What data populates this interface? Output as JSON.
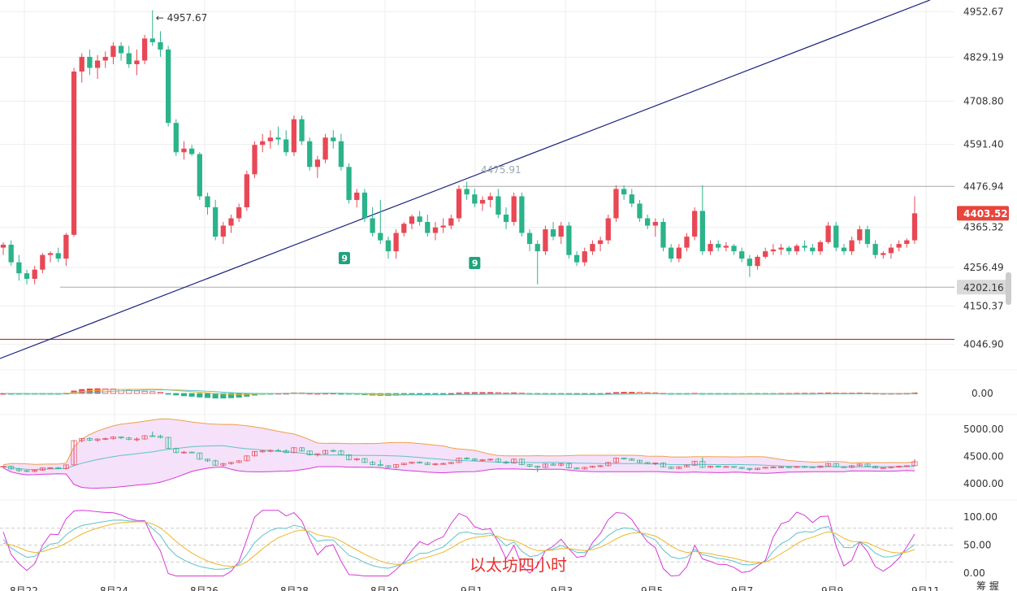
{
  "chart_data": [
    {
      "type": "candlestick",
      "panel": "price",
      "y_ticks": [
        "4952.67",
        "4829.19",
        "4708.80",
        "4591.40",
        "4476.94",
        "4365.32",
        "4256.49",
        "4150.37",
        "4046.90"
      ],
      "ylim": [
        4010,
        4985
      ],
      "x_ticks": [
        "8月22",
        "8月24",
        "8月26",
        "8月28",
        "8月30",
        "9月1",
        "9月3",
        "9月5",
        "9月7",
        "9月9",
        "9月11"
      ],
      "high_marker": "4957.67",
      "high_marker_prefix": "←",
      "level_label_mid": "4475.91",
      "current_price": "4403.52",
      "low_level": "4202.16",
      "support_level": 4060,
      "pattern_marks": [
        "9",
        "9"
      ],
      "candles": [
        [
          4310,
          4325,
          4290,
          4318
        ],
        [
          4318,
          4330,
          4260,
          4270
        ],
        [
          4270,
          4290,
          4220,
          4240
        ],
        [
          4240,
          4250,
          4210,
          4225
        ],
        [
          4225,
          4260,
          4210,
          4250
        ],
        [
          4250,
          4295,
          4240,
          4290
        ],
        [
          4290,
          4300,
          4270,
          4295
        ],
        [
          4295,
          4310,
          4270,
          4280
        ],
        [
          4280,
          4350,
          4260,
          4345
        ],
        [
          4345,
          4800,
          4340,
          4790
        ],
        [
          4790,
          4840,
          4760,
          4830
        ],
        [
          4830,
          4850,
          4780,
          4800
        ],
        [
          4800,
          4835,
          4770,
          4820
        ],
        [
          4820,
          4845,
          4800,
          4830
        ],
        [
          4830,
          4870,
          4810,
          4860
        ],
        [
          4860,
          4870,
          4820,
          4840
        ],
        [
          4840,
          4860,
          4800,
          4810
        ],
        [
          4810,
          4850,
          4780,
          4820
        ],
        [
          4820,
          4890,
          4810,
          4880
        ],
        [
          4880,
          4957,
          4860,
          4870
        ],
        [
          4870,
          4900,
          4830,
          4850
        ],
        [
          4850,
          4860,
          4640,
          4650
        ],
        [
          4650,
          4660,
          4560,
          4570
        ],
        [
          4570,
          4600,
          4550,
          4580
        ],
        [
          4580,
          4590,
          4560,
          4565
        ],
        [
          4565,
          4570,
          4440,
          4450
        ],
        [
          4450,
          4460,
          4400,
          4420
        ],
        [
          4420,
          4440,
          4330,
          4340
        ],
        [
          4340,
          4380,
          4320,
          4370
        ],
        [
          4370,
          4400,
          4350,
          4390
        ],
        [
          4390,
          4430,
          4380,
          4420
        ],
        [
          4420,
          4520,
          4410,
          4510
        ],
        [
          4510,
          4600,
          4500,
          4590
        ],
        [
          4590,
          4620,
          4570,
          4600
        ],
        [
          4600,
          4630,
          4580,
          4610
        ],
        [
          4610,
          4640,
          4590,
          4605
        ],
        [
          4605,
          4630,
          4560,
          4570
        ],
        [
          4570,
          4670,
          4560,
          4660
        ],
        [
          4660,
          4670,
          4590,
          4600
        ],
        [
          4600,
          4610,
          4520,
          4530
        ],
        [
          4530,
          4560,
          4500,
          4550
        ],
        [
          4550,
          4620,
          4540,
          4610
        ],
        [
          4610,
          4630,
          4580,
          4600
        ],
        [
          4600,
          4620,
          4520,
          4530
        ],
        [
          4530,
          4540,
          4430,
          4440
        ],
        [
          4440,
          4470,
          4420,
          4460
        ],
        [
          4460,
          4470,
          4380,
          4390
        ],
        [
          4390,
          4420,
          4340,
          4350
        ],
        [
          4350,
          4440,
          4320,
          4330
        ],
        [
          4330,
          4340,
          4280,
          4300
        ],
        [
          4300,
          4360,
          4280,
          4350
        ],
        [
          4350,
          4380,
          4340,
          4375
        ],
        [
          4375,
          4400,
          4360,
          4395
        ],
        [
          4395,
          4410,
          4370,
          4380
        ],
        [
          4380,
          4400,
          4340,
          4350
        ],
        [
          4350,
          4380,
          4330,
          4365
        ],
        [
          4365,
          4390,
          4350,
          4370
        ],
        [
          4370,
          4400,
          4360,
          4390
        ],
        [
          4390,
          4480,
          4380,
          4470
        ],
        [
          4470,
          4490,
          4440,
          4455
        ],
        [
          4455,
          4470,
          4420,
          4430
        ],
        [
          4430,
          4450,
          4410,
          4440
        ],
        [
          4440,
          4460,
          4420,
          4450
        ],
        [
          4450,
          4470,
          4390,
          4400
        ],
        [
          4400,
          4420,
          4360,
          4380
        ],
        [
          4380,
          4460,
          4370,
          4450
        ],
        [
          4450,
          4460,
          4340,
          4350
        ],
        [
          4350,
          4360,
          4300,
          4320
        ],
        [
          4320,
          4330,
          4210,
          4300
        ],
        [
          4300,
          4370,
          4290,
          4360
        ],
        [
          4360,
          4380,
          4330,
          4340
        ],
        [
          4340,
          4380,
          4320,
          4370
        ],
        [
          4370,
          4380,
          4280,
          4290
        ],
        [
          4290,
          4300,
          4260,
          4270
        ],
        [
          4270,
          4310,
          4260,
          4300
        ],
        [
          4300,
          4330,
          4290,
          4320
        ],
        [
          4320,
          4340,
          4300,
          4330
        ],
        [
          4330,
          4400,
          4320,
          4390
        ],
        [
          4390,
          4480,
          4380,
          4470
        ],
        [
          4470,
          4480,
          4440,
          4455
        ],
        [
          4455,
          4470,
          4420,
          4430
        ],
        [
          4430,
          4440,
          4380,
          4390
        ],
        [
          4390,
          4400,
          4360,
          4370
        ],
        [
          4370,
          4390,
          4340,
          4380
        ],
        [
          4380,
          4390,
          4300,
          4310
        ],
        [
          4310,
          4320,
          4270,
          4280
        ],
        [
          4280,
          4320,
          4270,
          4310
        ],
        [
          4310,
          4350,
          4300,
          4340
        ],
        [
          4340,
          4420,
          4330,
          4410
        ],
        [
          4410,
          4480,
          4290,
          4300
        ],
        [
          4300,
          4330,
          4290,
          4320
        ],
        [
          4320,
          4330,
          4300,
          4310
        ],
        [
          4310,
          4325,
          4300,
          4315
        ],
        [
          4315,
          4320,
          4290,
          4300
        ],
        [
          4300,
          4310,
          4270,
          4280
        ],
        [
          4280,
          4290,
          4230,
          4260
        ],
        [
          4260,
          4290,
          4250,
          4285
        ],
        [
          4285,
          4310,
          4280,
          4300
        ],
        [
          4300,
          4320,
          4290,
          4305
        ],
        [
          4305,
          4320,
          4290,
          4310
        ],
        [
          4310,
          4315,
          4290,
          4300
        ],
        [
          4300,
          4320,
          4290,
          4315
        ],
        [
          4315,
          4330,
          4300,
          4310
        ],
        [
          4310,
          4320,
          4290,
          4300
        ],
        [
          4300,
          4330,
          4290,
          4325
        ],
        [
          4325,
          4380,
          4320,
          4370
        ],
        [
          4370,
          4380,
          4300,
          4310
        ],
        [
          4310,
          4320,
          4290,
          4300
        ],
        [
          4300,
          4340,
          4290,
          4330
        ],
        [
          4330,
          4370,
          4320,
          4360
        ],
        [
          4360,
          4370,
          4310,
          4320
        ],
        [
          4320,
          4330,
          4280,
          4290
        ],
        [
          4290,
          4300,
          4280,
          4295
        ],
        [
          4295,
          4320,
          4280,
          4310
        ],
        [
          4310,
          4330,
          4300,
          4320
        ],
        [
          4320,
          4335,
          4310,
          4330
        ],
        [
          4330,
          4450,
          4320,
          4403.52
        ]
      ]
    },
    {
      "type": "bar",
      "panel": "macd",
      "y_ticks": [
        "0.00"
      ]
    },
    {
      "type": "line",
      "panel": "bollinger",
      "y_ticks": [
        "5000.00",
        "4500.00",
        "4000.00"
      ]
    },
    {
      "type": "line",
      "panel": "kdj",
      "y_ticks": [
        "100.00",
        "50.00",
        "0.00"
      ]
    }
  ],
  "watermark": "以太坊四小时",
  "corner_text": "筹 握",
  "colors": {
    "up": "#e84855",
    "down": "#2bb38a",
    "trendline": "#1a237e",
    "support": "#c62828",
    "grid": "#eeeeee",
    "price_badge": "#e8453c",
    "low_badge": "#d9d9d9",
    "boll_upper": "#f0a04b",
    "boll_fill": "#f3d9f7",
    "boll_mid": "#5fc3c9",
    "kdj_k": "#5fc3c9",
    "kdj_d": "#f0b429",
    "kdj_j": "#d63ad8"
  }
}
